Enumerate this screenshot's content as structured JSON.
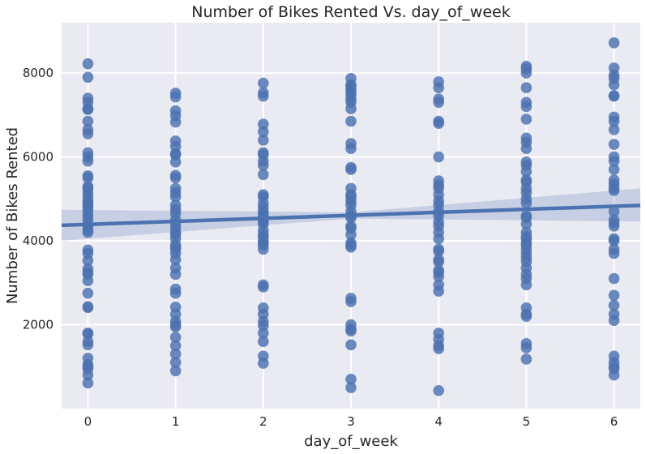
{
  "chart_data": {
    "type": "scatter",
    "title": "Number of Bikes Rented Vs. day_of_week",
    "xlabel": "day_of_week",
    "ylabel": "Number of Bikes Rented",
    "xlim": [
      -0.3,
      6.3
    ],
    "ylim": [
      0,
      9200
    ],
    "xticks": [
      0,
      1,
      2,
      3,
      4,
      5,
      6
    ],
    "yticks": [
      2000,
      4000,
      6000,
      8000
    ],
    "grid": true,
    "background": "#eaeaf2",
    "color": "#4c72b0",
    "regression": {
      "y_at_xmin": 4370,
      "y_at_xmax": 4845,
      "ci_upper_at_xmin": 4740,
      "ci_lower_at_xmin": 4000,
      "ci_upper_at_center": 4680,
      "ci_lower_at_center": 4530,
      "ci_upper_at_xmax": 5250,
      "ci_lower_at_xmax": 4460
    },
    "series": [
      {
        "x": 0,
        "y": [
          8220,
          7900,
          7400,
          7300,
          7150,
          7130,
          6850,
          6650,
          6550,
          6100,
          6000,
          5900,
          5550,
          5500,
          5300,
          5250,
          5150,
          5050,
          4950,
          4900,
          4850,
          4780,
          4700,
          4600,
          4500,
          4400,
          4350,
          4250,
          4200,
          3780,
          3700,
          3530,
          3330,
          3250,
          3200,
          3050,
          2750,
          2430,
          2410,
          1800,
          1780,
          1600,
          1520,
          1200,
          1050,
          1000,
          950,
          800,
          610
        ]
      },
      {
        "x": 1,
        "y": [
          7520,
          7430,
          7100,
          6980,
          6830,
          6380,
          6250,
          6080,
          6050,
          5880,
          5560,
          5500,
          5250,
          5150,
          5050,
          4850,
          4750,
          4650,
          4500,
          4400,
          4300,
          4200,
          4150,
          4050,
          3900,
          3850,
          3800,
          3700,
          3550,
          3350,
          3200,
          2850,
          2750,
          2420,
          2250,
          2080,
          2000,
          1950,
          1700,
          1500,
          1300,
          1100,
          900
        ]
      },
      {
        "x": 2,
        "y": [
          7760,
          7530,
          7450,
          6780,
          6600,
          6400,
          6100,
          6050,
          5900,
          5800,
          5580,
          5100,
          5050,
          4900,
          4800,
          4700,
          4650,
          4580,
          4550,
          4500,
          4450,
          4400,
          4250,
          4150,
          4100,
          4000,
          3950,
          3900,
          3800,
          2950,
          2900,
          2400,
          2250,
          2080,
          1980,
          1800,
          1600,
          1250,
          1080
        ]
      },
      {
        "x": 3,
        "y": [
          7870,
          7720,
          7680,
          7620,
          7550,
          7480,
          7380,
          7300,
          7150,
          6850,
          6320,
          6200,
          5750,
          5700,
          5250,
          5100,
          5050,
          4950,
          4850,
          4700,
          4600,
          4550,
          4350,
          4300,
          4150,
          3950,
          3900,
          3850,
          2630,
          2550,
          2000,
          1900,
          1850,
          1520,
          700,
          500
        ]
      },
      {
        "x": 4,
        "y": [
          7790,
          7650,
          7380,
          7300,
          6850,
          6800,
          6000,
          5430,
          5330,
          5250,
          5100,
          4950,
          4850,
          4700,
          4600,
          4450,
          4350,
          4200,
          4050,
          3800,
          3750,
          3550,
          3500,
          3300,
          3250,
          3150,
          2950,
          2800,
          1800,
          1650,
          1500,
          1430,
          430
        ]
      },
      {
        "x": 5,
        "y": [
          8160,
          8100,
          8000,
          7650,
          7300,
          7200,
          6900,
          6450,
          6350,
          6200,
          5880,
          5800,
          5650,
          5450,
          5400,
          5250,
          5150,
          5000,
          4900,
          4600,
          4550,
          4400,
          4200,
          4100,
          4050,
          3950,
          3900,
          3800,
          3700,
          3600,
          3500,
          3350,
          3200,
          3100,
          2950,
          2400,
          2250,
          2200,
          1550,
          1450,
          1180
        ]
      },
      {
        "x": 6,
        "y": [
          8720,
          8120,
          7950,
          7870,
          7720,
          7460,
          7450,
          6950,
          6850,
          6650,
          6300,
          6000,
          5900,
          5700,
          5450,
          5350,
          5250,
          5200,
          4700,
          4500,
          4420,
          4350,
          4050,
          4000,
          3800,
          3700,
          3100,
          2700,
          2460,
          2250,
          2100,
          1250,
          1100,
          1000,
          950,
          800
        ]
      }
    ]
  }
}
